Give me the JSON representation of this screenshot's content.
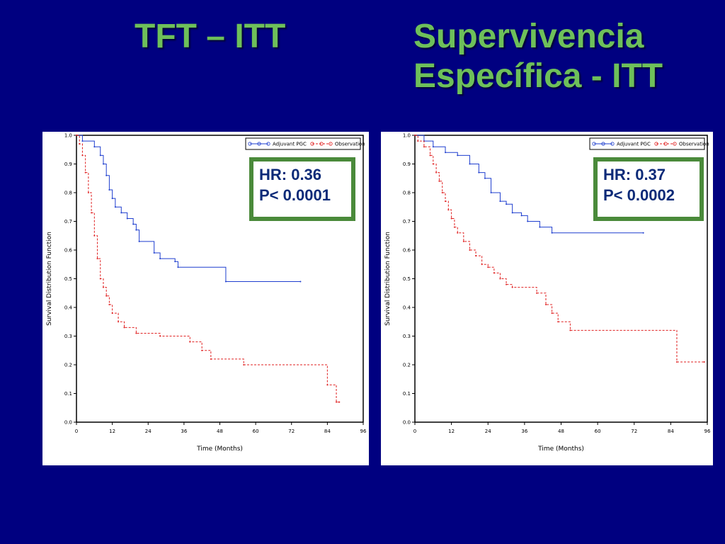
{
  "slide": {
    "title_left": "TFT – ITT",
    "title_right_line1": "Supervivencia",
    "title_right_line2": "Específica - ITT",
    "colors": {
      "background": "#000080",
      "title": "#6ec05a",
      "box_border": "#4a8a3a",
      "stats_text": "#0b2a78"
    }
  },
  "chart_data": [
    {
      "type": "line",
      "step": true,
      "xlabel": "Time (Months)",
      "ylabel": "Survival Distribution Function",
      "xlim": [
        0,
        96
      ],
      "ylim": [
        0.0,
        1.0
      ],
      "x_ticks": [
        "0",
        "12",
        "24",
        "36",
        "48",
        "60",
        "72",
        "84",
        "96"
      ],
      "y_ticks": [
        "0.0",
        "0.1",
        "0.2",
        "0.3",
        "0.4",
        "0.5",
        "0.6",
        "0.7",
        "0.8",
        "0.9",
        "1.0"
      ],
      "legend": [
        "Adjuvant PGC",
        "Observation"
      ],
      "legend_position": "top-right",
      "stats": {
        "hr": "HR: 0.36",
        "p": "P< 0.0001"
      },
      "series": [
        {
          "name": "Adjuvant PGC",
          "color": "#1f3fcf",
          "dashed": false,
          "points": [
            [
              0,
              1.0
            ],
            [
              2,
              0.98
            ],
            [
              6,
              0.96
            ],
            [
              8,
              0.93
            ],
            [
              9,
              0.9
            ],
            [
              10,
              0.86
            ],
            [
              11,
              0.81
            ],
            [
              12,
              0.78
            ],
            [
              13,
              0.75
            ],
            [
              15,
              0.73
            ],
            [
              17,
              0.71
            ],
            [
              19,
              0.69
            ],
            [
              20,
              0.67
            ],
            [
              21,
              0.63
            ],
            [
              26,
              0.59
            ],
            [
              28,
              0.57
            ],
            [
              33,
              0.56
            ],
            [
              34,
              0.54
            ],
            [
              50,
              0.49
            ],
            [
              75,
              0.49
            ]
          ]
        },
        {
          "name": "Observation",
          "color": "#e02020",
          "dashed": true,
          "points": [
            [
              0,
              1.0
            ],
            [
              1,
              0.97
            ],
            [
              2,
              0.93
            ],
            [
              3,
              0.87
            ],
            [
              4,
              0.8
            ],
            [
              5,
              0.73
            ],
            [
              6,
              0.65
            ],
            [
              7,
              0.57
            ],
            [
              8,
              0.5
            ],
            [
              9,
              0.47
            ],
            [
              10,
              0.44
            ],
            [
              11,
              0.41
            ],
            [
              12,
              0.38
            ],
            [
              14,
              0.35
            ],
            [
              16,
              0.33
            ],
            [
              20,
              0.31
            ],
            [
              28,
              0.3
            ],
            [
              38,
              0.28
            ],
            [
              42,
              0.25
            ],
            [
              45,
              0.22
            ],
            [
              56,
              0.2
            ],
            [
              84,
              0.13
            ],
            [
              87,
              0.07
            ],
            [
              88,
              0.07
            ]
          ]
        }
      ]
    },
    {
      "type": "line",
      "step": true,
      "xlabel": "Time (Months)",
      "ylabel": "Survival Distribution Function",
      "xlim": [
        0,
        96
      ],
      "ylim": [
        0.0,
        1.0
      ],
      "x_ticks": [
        "0",
        "12",
        "24",
        "36",
        "48",
        "60",
        "72",
        "84",
        "96"
      ],
      "y_ticks": [
        "0.0",
        "0.1",
        "0.2",
        "0.3",
        "0.4",
        "0.5",
        "0.6",
        "0.7",
        "0.8",
        "0.9",
        "1.0"
      ],
      "legend": [
        "Adjuvant PGC",
        "Observation"
      ],
      "legend_position": "top-right",
      "stats": {
        "hr": "HR: 0.37",
        "p": "P< 0.0002"
      },
      "series": [
        {
          "name": "Adjuvant PGC",
          "color": "#1f3fcf",
          "dashed": false,
          "points": [
            [
              0,
              1.0
            ],
            [
              3,
              0.98
            ],
            [
              6,
              0.96
            ],
            [
              10,
              0.94
            ],
            [
              14,
              0.93
            ],
            [
              18,
              0.9
            ],
            [
              21,
              0.87
            ],
            [
              23,
              0.85
            ],
            [
              25,
              0.8
            ],
            [
              28,
              0.77
            ],
            [
              30,
              0.76
            ],
            [
              32,
              0.73
            ],
            [
              35,
              0.72
            ],
            [
              37,
              0.7
            ],
            [
              41,
              0.68
            ],
            [
              45,
              0.66
            ],
            [
              75,
              0.66
            ]
          ]
        },
        {
          "name": "Observation",
          "color": "#e02020",
          "dashed": true,
          "points": [
            [
              0,
              1.0
            ],
            [
              1,
              0.98
            ],
            [
              3,
              0.96
            ],
            [
              5,
              0.93
            ],
            [
              6,
              0.9
            ],
            [
              7,
              0.87
            ],
            [
              8,
              0.84
            ],
            [
              9,
              0.8
            ],
            [
              10,
              0.77
            ],
            [
              11,
              0.74
            ],
            [
              12,
              0.71
            ],
            [
              13,
              0.68
            ],
            [
              14,
              0.66
            ],
            [
              16,
              0.63
            ],
            [
              18,
              0.6
            ],
            [
              20,
              0.58
            ],
            [
              22,
              0.55
            ],
            [
              24,
              0.54
            ],
            [
              26,
              0.52
            ],
            [
              28,
              0.5
            ],
            [
              30,
              0.48
            ],
            [
              32,
              0.47
            ],
            [
              40,
              0.45
            ],
            [
              43,
              0.41
            ],
            [
              45,
              0.38
            ],
            [
              47,
              0.35
            ],
            [
              51,
              0.32
            ],
            [
              86,
              0.21
            ],
            [
              95,
              0.21
            ]
          ]
        }
      ]
    }
  ]
}
